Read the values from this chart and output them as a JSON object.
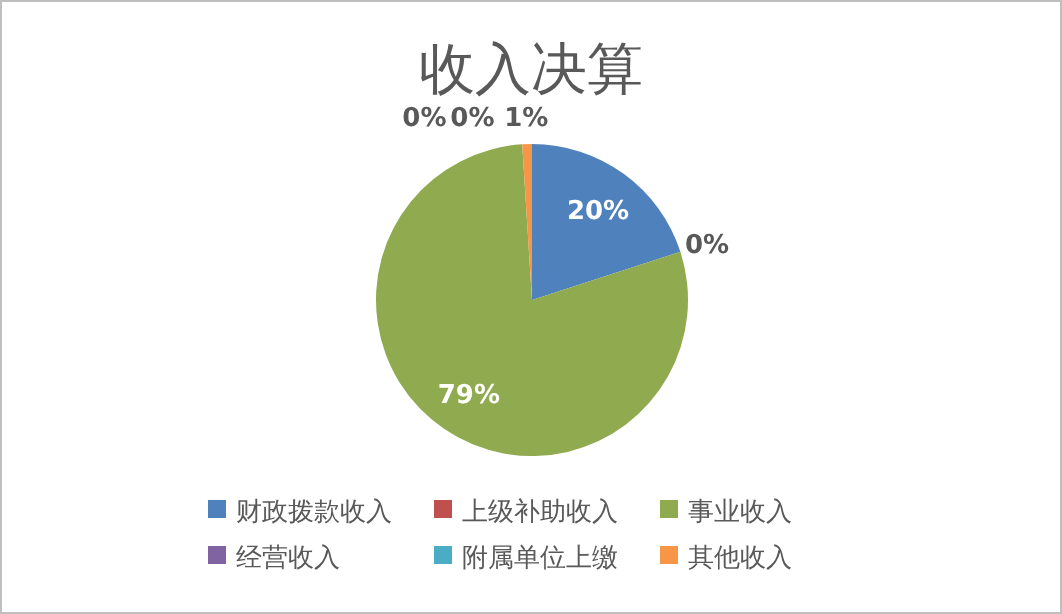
{
  "chart_data": {
    "type": "pie",
    "title": "收入决算",
    "categories": [
      "财政拨款收入",
      "上级补助收入",
      "事业收入",
      "经营收入",
      "附属单位上缴",
      "其他收入"
    ],
    "values": [
      20,
      0,
      79,
      0,
      0,
      1
    ],
    "colors": [
      "#4f81bd",
      "#c0504d",
      "#8faa4f",
      "#8064a2",
      "#4bacc6",
      "#f79646"
    ],
    "value_labels": [
      "20%",
      "0%",
      "79%",
      "0%",
      "0%",
      "1%"
    ],
    "legend": "bottom"
  }
}
